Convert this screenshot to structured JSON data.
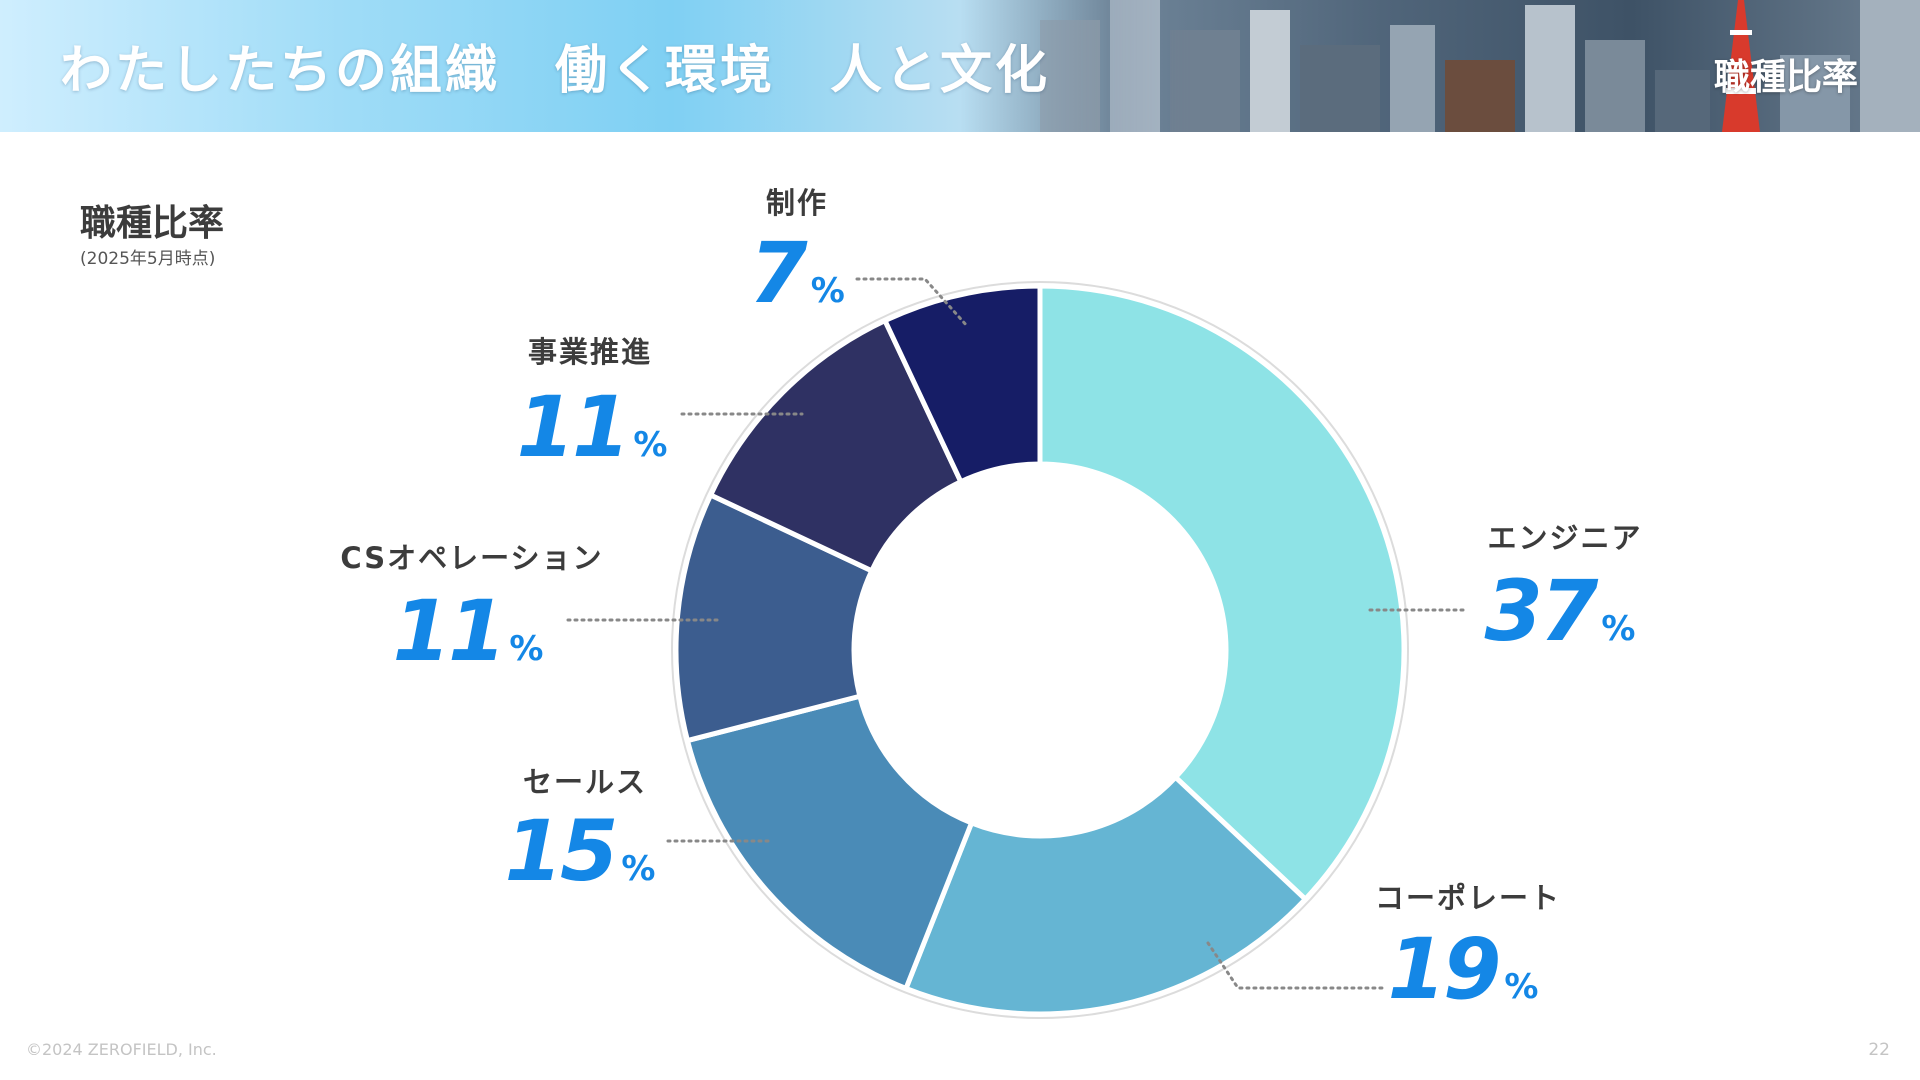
{
  "header": {
    "title": "わたしたちの組織　働く環境　人と文化",
    "section": "職種比率"
  },
  "page": {
    "title": "職種比率",
    "subtitle": "(2025年5月時点)"
  },
  "chart_data": {
    "type": "pie",
    "title": "職種比率",
    "subtitle": "(2025年5月時点)",
    "unit": "%",
    "categories": [
      "エンジニア",
      "コーポレート",
      "セールス",
      "CSオペレーション",
      "事業推進",
      "制作"
    ],
    "values": [
      37,
      19,
      15,
      11,
      11,
      7
    ],
    "colors": [
      "#8ee3e6",
      "#65b5d3",
      "#4a8bb7",
      "#3c5d8f",
      "#2f3163",
      "#161d66"
    ],
    "label_color": "#1487e6",
    "grid": false,
    "legend": "none"
  },
  "footer": {
    "copyright": "©2024 ZEROFIELD, Inc.",
    "page_number": "22"
  }
}
